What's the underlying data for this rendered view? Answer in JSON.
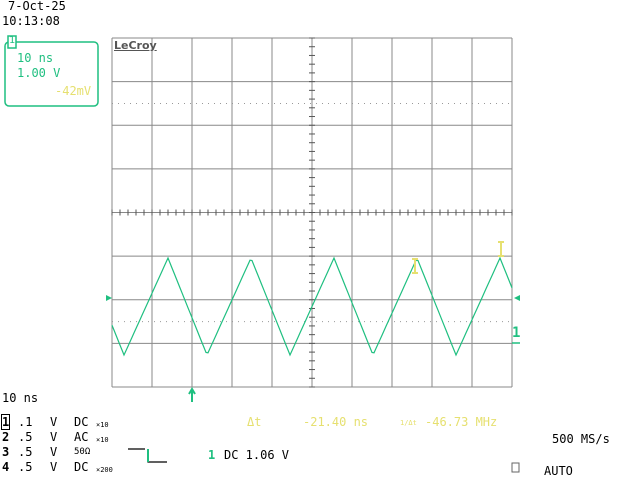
{
  "header": {
    "date": "7-Oct-25",
    "time": "10:13:08"
  },
  "trace_box": {
    "channel": "1",
    "timebase": "10 ns",
    "volts_per_div": "1.00 V",
    "offset": "-42mV"
  },
  "brand": "LeCroy",
  "timebase": "10 ns",
  "channels": [
    {
      "number": "1",
      "scale": ".1",
      "unit": "V",
      "coupling": "DC",
      "probe": "×10"
    },
    {
      "number": "2",
      "scale": ".5",
      "unit": "V",
      "coupling": "AC",
      "probe": "×10"
    },
    {
      "number": "3",
      "scale": ".5",
      "unit": "V",
      "coupling": "50Ω"
    },
    {
      "number": "4",
      "scale": ".5",
      "unit": "V",
      "coupling": "DC",
      "probe": "×200"
    }
  ],
  "cursor": {
    "delta_label": "Δt",
    "delta": "-21.40 ns",
    "inverse_label": "1/Δt",
    "frequency": "-46.73 MHz"
  },
  "trigger": {
    "channel": "1",
    "setting": "DC 1.06 V",
    "sample_rate": "500 MS/s",
    "mode": "AUTO"
  },
  "trace_label": "1"
}
